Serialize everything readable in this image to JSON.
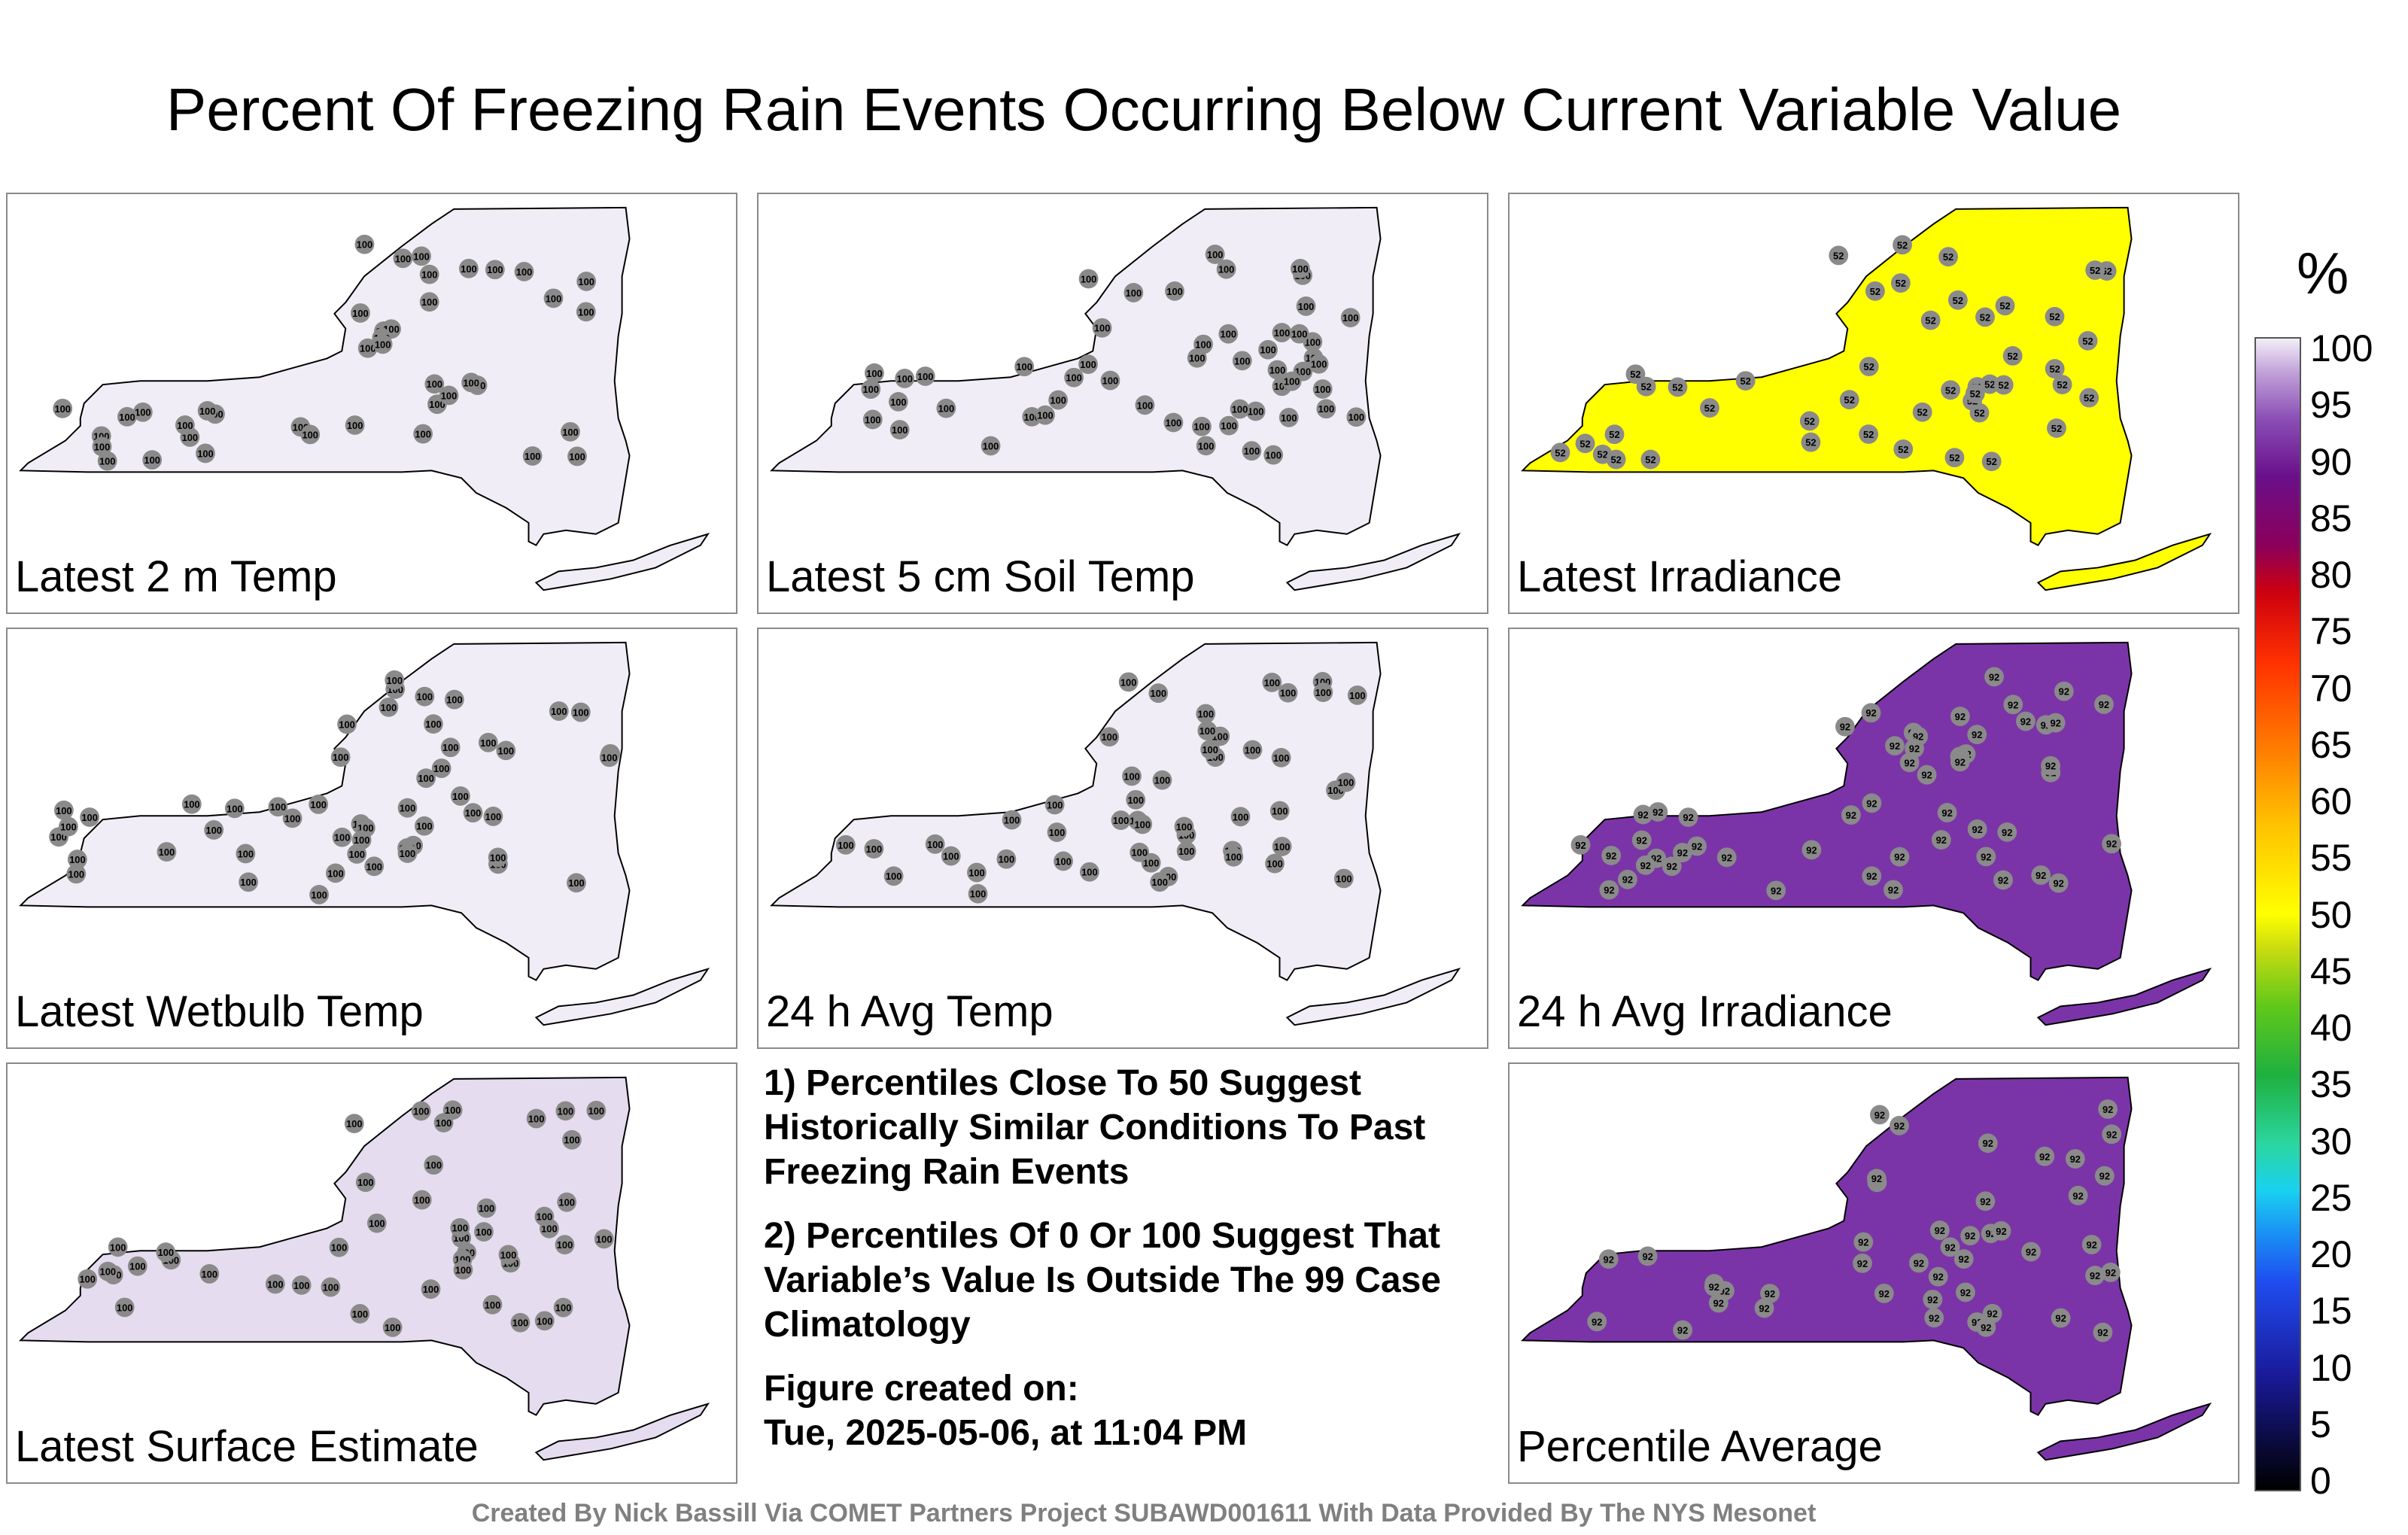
{
  "title": "Percent Of Freezing Rain Events Occurring Below Current Variable Value",
  "panels": [
    {
      "label": "Latest 2 m Temp",
      "fill": "#f1edf6",
      "value": "100"
    },
    {
      "label": "Latest 5 cm Soil Temp",
      "fill": "#f1edf6",
      "value": "100"
    },
    {
      "label": "Latest Irradiance",
      "fill": "#ffff00",
      "value": "52"
    },
    {
      "label": "Latest Wetbulb Temp",
      "fill": "#f1edf6",
      "value": "100"
    },
    {
      "label": "24 h Avg Temp",
      "fill": "#f1edf6",
      "value": "100"
    },
    {
      "label": "24 h Avg Irradiance",
      "fill": "#7b34a8",
      "value": "92"
    },
    {
      "label": "Latest Surface Estimate",
      "fill": "#e6dcef",
      "value": "100"
    },
    {
      "label": "Percentile Average",
      "fill": "#7b34a8",
      "value": "92"
    }
  ],
  "notes": {
    "note1": "1) Percentiles Close To 50 Suggest Historically Similar Conditions To Past Freezing Rain Events",
    "note2": "2) Percentiles Of 0 Or 100 Suggest That Variable’s Value Is Outside The 99 Case Climatology",
    "created_label": "Figure created on:",
    "created_value": "Tue, 2025-05-06, at 11:04 PM"
  },
  "colorbar": {
    "unit": "%",
    "ticks": [
      "100",
      "95",
      "90",
      "85",
      "80",
      "75",
      "70",
      "65",
      "60",
      "55",
      "50",
      "45",
      "40",
      "35",
      "30",
      "25",
      "20",
      "15",
      "10",
      "5",
      "0"
    ]
  },
  "footer": "Created By Nick Bassill Via COMET Partners Project SUBAWD001611 With Data Provided By The NYS Mesonet"
}
